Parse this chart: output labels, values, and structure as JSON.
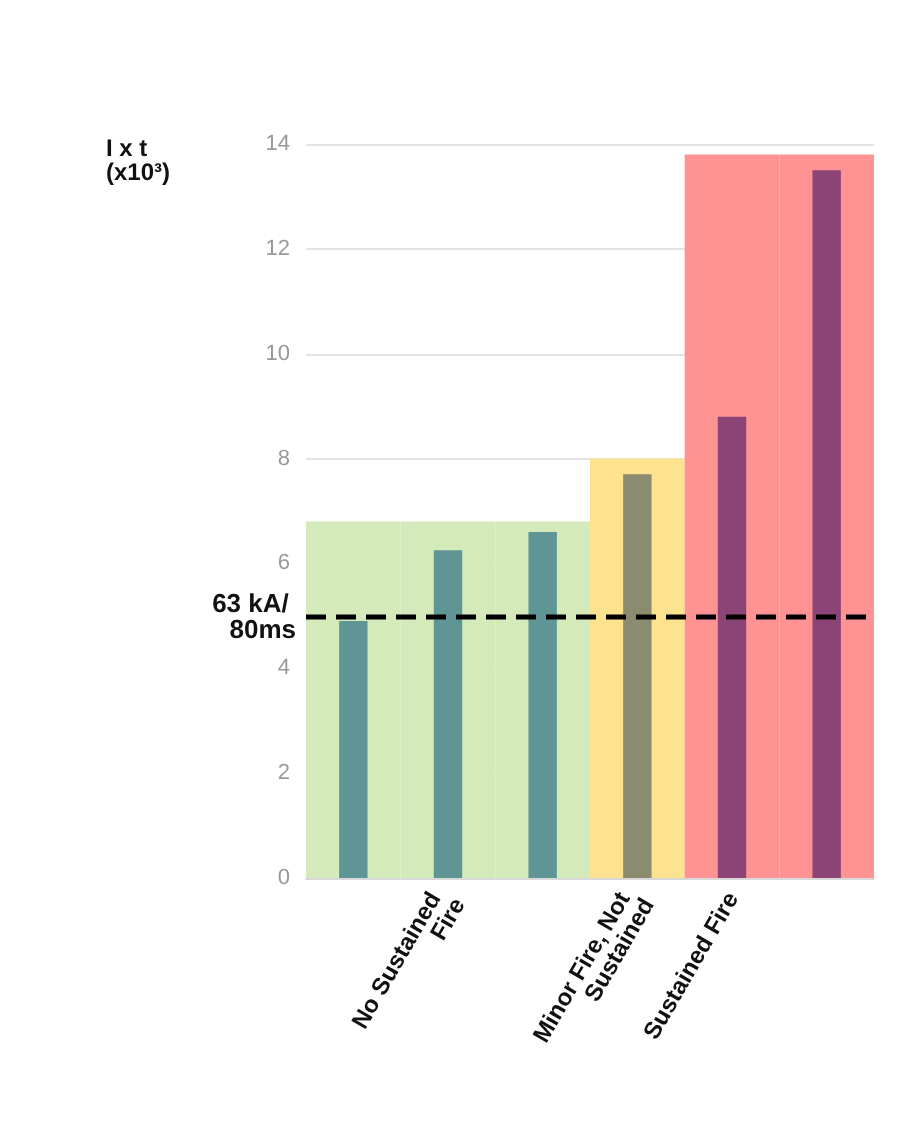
{
  "chart_data": {
    "type": "bar",
    "ylabel": "I x t (x10³)",
    "categories": [
      null,
      "No Sustained Fire",
      null,
      "Minor Fire, Not Sustained",
      "Sustained Fire",
      null
    ],
    "series": [
      {
        "colors": [
          "#d4eabb",
          "#d4eabb",
          "#d4eabb",
          "#fde38f",
          "#ff9393",
          "#ff9393"
        ],
        "values": [
          6.8,
          6.8,
          6.8,
          8.0,
          13.8,
          13.8
        ]
      },
      {
        "colors": [
          "#5f9595",
          "#5f9595",
          "#5f9595",
          "#8b8b70",
          "#8b4475",
          "#8b4475"
        ],
        "values": [
          4.9,
          6.25,
          6.6,
          7.7,
          8.8,
          13.5
        ]
      }
    ],
    "ylim": [
      0,
      14
    ],
    "yticks": [
      0,
      2,
      4,
      6,
      8,
      10,
      12,
      14
    ],
    "grid": "y",
    "ref_lines": [
      {
        "axis": "y",
        "value": 5,
        "label": "63 kA/ 80ms",
        "color": "#000000",
        "line_style": "dashed"
      }
    ]
  }
}
